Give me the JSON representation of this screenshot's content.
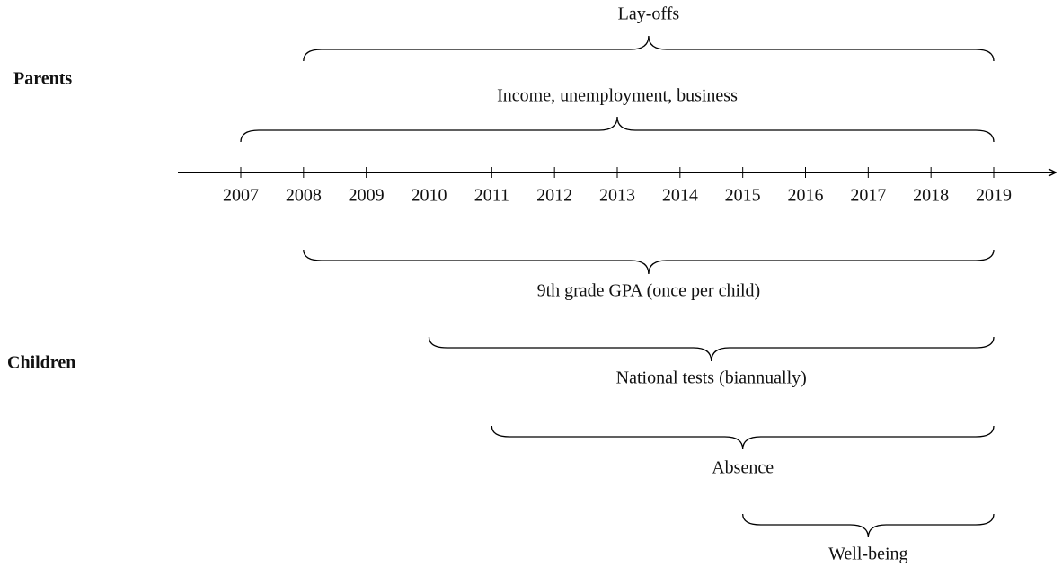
{
  "groups": [
    "Parents",
    "Children"
  ],
  "axis": {
    "years": [
      2007,
      2008,
      2009,
      2010,
      2011,
      2012,
      2013,
      2014,
      2015,
      2016,
      2017,
      2018,
      2019
    ]
  },
  "braces": [
    {
      "label": "Lay-offs",
      "start": 2008,
      "end": 2019
    },
    {
      "label": "Income, unemployment, business",
      "start": 2007,
      "end": 2019
    },
    {
      "label": "9th grade GPA (once per child)",
      "start": 2008,
      "end": 2019
    },
    {
      "label": "National tests (biannually)",
      "start": 2010,
      "end": 2019
    },
    {
      "label": "Absence",
      "start": 2011,
      "end": 2019
    },
    {
      "label": "Well-being",
      "start": 2015,
      "end": 2019
    }
  ]
}
